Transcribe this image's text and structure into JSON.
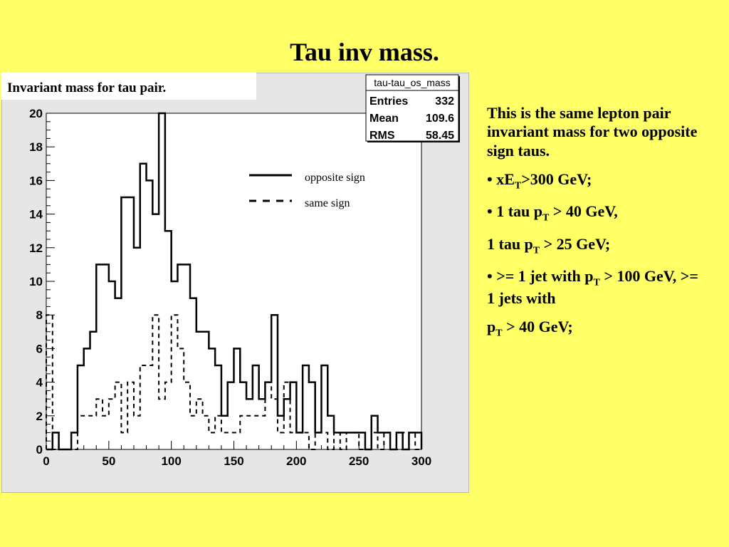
{
  "slide": {
    "title": "Tau inv mass."
  },
  "plot": {
    "caption": "Invariant mass for tau pair.",
    "stats_box": {
      "name": "tau-tau_os_mass",
      "rows": [
        {
          "label": "Entries",
          "value": "332"
        },
        {
          "label": "Mean",
          "value": "109.6"
        },
        {
          "label": "RMS",
          "value": "58.45"
        }
      ]
    },
    "legend": {
      "entries": [
        {
          "label": "opposite sign",
          "style": "solid"
        },
        {
          "label": "same sign",
          "style": "dashed"
        }
      ]
    }
  },
  "chart_data": {
    "type": "histogram",
    "title": "",
    "xlabel": "",
    "ylabel": "",
    "xlim": [
      0,
      300
    ],
    "ylim": [
      0,
      20
    ],
    "x_ticks": [
      0,
      50,
      100,
      150,
      200,
      250,
      300
    ],
    "y_ticks": [
      0,
      2,
      4,
      6,
      8,
      10,
      12,
      14,
      16,
      18,
      20
    ],
    "bin_edges": [
      0,
      5,
      10,
      15,
      20,
      25,
      30,
      35,
      40,
      45,
      50,
      55,
      60,
      65,
      70,
      75,
      80,
      85,
      90,
      95,
      100,
      105,
      110,
      115,
      120,
      125,
      130,
      135,
      140,
      145,
      150,
      155,
      160,
      165,
      170,
      175,
      180,
      185,
      190,
      195,
      200,
      205,
      210,
      215,
      220,
      225,
      230,
      235,
      240,
      245,
      250,
      255,
      260,
      265,
      270,
      275,
      280,
      285,
      290,
      295,
      300
    ],
    "series": [
      {
        "name": "opposite sign",
        "style": "solid",
        "values": [
          0,
          1,
          0,
          0,
          1,
          5,
          6,
          7,
          11,
          11,
          10,
          9,
          15,
          15,
          12,
          17,
          16,
          14,
          20,
          13,
          10,
          11,
          11,
          9,
          7,
          7,
          6,
          5,
          2,
          4,
          6,
          4,
          3,
          5,
          3,
          4,
          8,
          2,
          3,
          4,
          1,
          5,
          4,
          1,
          5,
          2,
          1,
          1,
          1,
          1,
          1,
          0,
          2,
          1,
          1,
          0,
          1,
          0,
          1,
          1
        ]
      },
      {
        "name": "same sign",
        "style": "dashed",
        "values": [
          8,
          0,
          0,
          0,
          0,
          2,
          2,
          2,
          3,
          2,
          3,
          4,
          1,
          4,
          2,
          5,
          5,
          8,
          3,
          4,
          8,
          6,
          4,
          2,
          3,
          2,
          1,
          2,
          1,
          1,
          1,
          2,
          2,
          2,
          2,
          4,
          3,
          1,
          4,
          1,
          1,
          1,
          0,
          1,
          1,
          0,
          1,
          0,
          1,
          1,
          0,
          0,
          1,
          0,
          1,
          0,
          0,
          1,
          1,
          0
        ]
      }
    ]
  },
  "side_text": {
    "p1": "This is the same lepton pair invariant mass for two opposite sign taus.",
    "p2_pre": "• xE",
    "p2_sub": "T",
    "p2_post": ">300 GeV;",
    "p3_pre": "• 1 tau p",
    "p3_sub": "T",
    "p3_post": " > 40 GeV,",
    "p4_pre": "1 tau p",
    "p4_sub": "T",
    "p4_post": " > 25 GeV;",
    "p5_pre": "• >= 1 jet with p",
    "p5_sub": "T",
    "p5_post": " > 100 GeV, >= 1 jets with",
    "p6_pre": " p",
    "p6_sub": "T",
    "p6_post": " > 40 GeV;"
  }
}
